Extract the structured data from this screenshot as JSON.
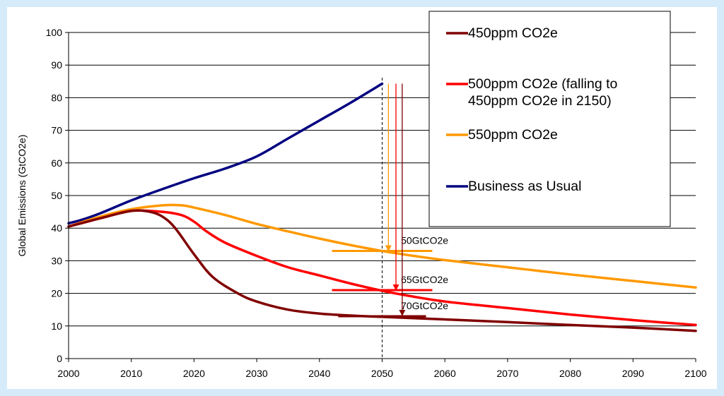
{
  "chart_data": {
    "type": "line",
    "title": "",
    "xlabel": "",
    "ylabel": "Global Emissions (GtCO2e)",
    "xlim": [
      2000,
      2100
    ],
    "ylim": [
      0,
      100
    ],
    "x_ticks": [
      2000,
      2010,
      2020,
      2030,
      2040,
      2050,
      2060,
      2070,
      2080,
      2090,
      2100
    ],
    "y_ticks": [
      0,
      10,
      20,
      30,
      40,
      50,
      60,
      70,
      80,
      90,
      100
    ],
    "grid": "horizontal",
    "legend_position": "top-right",
    "series": [
      {
        "name": "450ppm CO2e",
        "color": "#800000",
        "x": [
          2000,
          2005,
          2010,
          2013,
          2015,
          2017,
          2020,
          2023,
          2027,
          2030,
          2035,
          2040,
          2045,
          2050,
          2060,
          2070,
          2080,
          2090,
          2100
        ],
        "y": [
          40.5,
          43,
          45.3,
          45,
          43.5,
          40,
          32,
          25,
          20,
          17.5,
          15,
          13.8,
          13.2,
          12.8,
          12,
          11.2,
          10.3,
          9.5,
          8.5
        ]
      },
      {
        "name": "500ppm CO2e (falling to 450ppm CO2e in 2150)",
        "color": "#ff0000",
        "x": [
          2000,
          2005,
          2010,
          2015,
          2018,
          2020,
          2022,
          2025,
          2030,
          2035,
          2040,
          2045,
          2050,
          2055,
          2060,
          2070,
          2080,
          2090,
          2100
        ],
        "y": [
          40.5,
          43,
          45.3,
          45,
          44,
          42,
          39,
          35.5,
          31.5,
          28,
          25.5,
          23,
          20.8,
          19,
          17.5,
          15.5,
          13.5,
          11.8,
          10.3
        ]
      },
      {
        "name": "550ppm CO2e",
        "color": "#ff9900",
        "x": [
          2000,
          2005,
          2010,
          2015,
          2018,
          2020,
          2025,
          2030,
          2035,
          2040,
          2045,
          2050,
          2055,
          2060,
          2070,
          2080,
          2090,
          2100
        ],
        "y": [
          40.5,
          43.5,
          45.8,
          47,
          47,
          46.3,
          44,
          41.3,
          39,
          36.8,
          34.8,
          33,
          31.5,
          30.2,
          28,
          25.8,
          23.8,
          21.8
        ]
      },
      {
        "name": "Business as Usual",
        "color": "#000080",
        "x": [
          2000,
          2002,
          2005,
          2010,
          2015,
          2020,
          2025,
          2030,
          2035,
          2040,
          2045,
          2050
        ],
        "y": [
          41.5,
          42.5,
          44.5,
          48.5,
          52,
          55.3,
          58.3,
          62,
          67.5,
          73,
          78.5,
          84.3
        ]
      }
    ],
    "reference_line": {
      "x": 2050,
      "style": "dashed",
      "color": "#000000"
    },
    "annotations": [
      {
        "label": "50GtCO2e",
        "series": "550ppm CO2e",
        "color": "#ff9900",
        "arrow_x": 2051,
        "arrow_from": 84.3,
        "arrow_to": 33,
        "marker_y": 33,
        "marker_x": [
          2042,
          2058
        ]
      },
      {
        "label": "65GtCO2e",
        "series": "500ppm CO2e (falling to 450ppm CO2e in 2150)",
        "color": "#ff0000",
        "arrow_x": 2052.2,
        "arrow_from": 84.3,
        "arrow_to": 21,
        "marker_y": 21,
        "marker_x": [
          2042,
          2058
        ]
      },
      {
        "label": "70GtCO2e",
        "series": "450ppm CO2e",
        "color": "#800000",
        "arrow_x": 2053.2,
        "arrow_from": 84.3,
        "arrow_to": 13.2,
        "marker_y": 13,
        "marker_x": [
          2043,
          2057
        ]
      }
    ]
  }
}
